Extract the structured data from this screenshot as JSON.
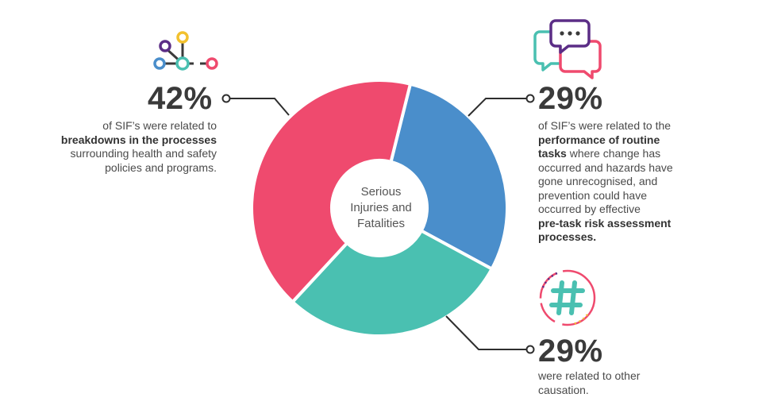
{
  "chart_data": {
    "type": "pie",
    "variant": "donut",
    "title": "",
    "center_label": [
      "Serious",
      "Injuries and",
      "Fatalities"
    ],
    "slices": [
      {
        "label": "42%",
        "value": 42,
        "color": "#ef4a6e"
      },
      {
        "label": "29%",
        "value": 29,
        "color": "#4a8ecb"
      },
      {
        "label": "29%",
        "value": 29,
        "color": "#4ac0b1"
      }
    ]
  },
  "callouts": {
    "breakdowns": {
      "percent": "42%",
      "line1": "of SIF’s were related to",
      "line2_bold": "breakdowns in the processes",
      "line3": "surrounding health and safety",
      "line4": "policies and programs."
    },
    "routine": {
      "percent": "29%",
      "line1": "of SIF’s were related to the",
      "line2_bold": "performance of routine",
      "line3_bold": "tasks",
      "line3_rest": " where change has",
      "line4": "occurred and hazards have",
      "line5": "gone unrecognised, and",
      "line6": "prevention could have",
      "line7": "occurred by effective",
      "line8_bold": "pre-task risk assessment",
      "line9_bold": "processes."
    },
    "other": {
      "percent": "29%",
      "line1": "were related to other",
      "line2": "causation."
    }
  },
  "colors": {
    "text_dark": "#3a3a3a",
    "leader_line": "#2e2e2e",
    "icon_purple": "#5b2d86",
    "icon_yellow": "#f2c12e",
    "icon_teal": "#4ac0b1",
    "icon_blue": "#4a8ecb",
    "icon_pink": "#ef4a6e"
  },
  "icons": {
    "breakdowns": "network-nodes-icon",
    "routine": "chat-bubbles-icon",
    "other": "hashtag-icon"
  }
}
